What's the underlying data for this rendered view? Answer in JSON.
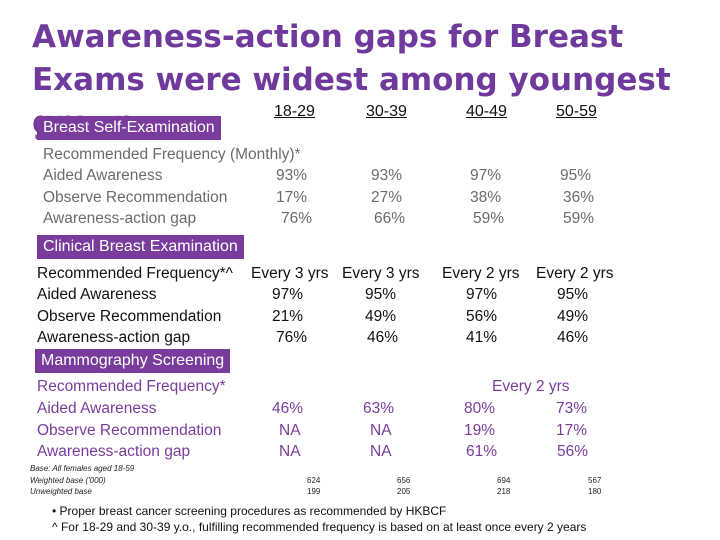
{
  "title": "Awareness-action gaps for Breast Exams were widest among youngest group.",
  "age_groups": [
    "18-29",
    "30-39",
    "40-49",
    "50-59"
  ],
  "sections": {
    "bse": {
      "label": "Breast Self-Examination",
      "rows": [
        {
          "label": "Recommended Frequency (Monthly)*",
          "values": [
            "",
            "",
            "",
            ""
          ]
        },
        {
          "label": "Aided Awareness",
          "values": [
            "93%",
            "93%",
            "97%",
            "95%"
          ]
        },
        {
          "label": "Observe Recommendation",
          "values": [
            "17%",
            "27%",
            "38%",
            "36%"
          ]
        },
        {
          "label": "Awareness-action gap",
          "values": [
            "76%",
            "66%",
            "59%",
            "59%"
          ]
        }
      ]
    },
    "cbe": {
      "label": "Clinical Breast Examination",
      "rows": [
        {
          "label": "Recommended Frequency*^",
          "values": [
            "Every 3 yrs",
            "Every 3 yrs",
            "Every 2 yrs",
            "Every 2 yrs"
          ]
        },
        {
          "label": "Aided Awareness",
          "values": [
            "97%",
            "95%",
            "97%",
            "95%"
          ]
        },
        {
          "label": "Observe Recommendation",
          "values": [
            "21%",
            "49%",
            "56%",
            "49%"
          ]
        },
        {
          "label": "Awareness-action gap",
          "values": [
            "76%",
            "46%",
            "41%",
            "46%"
          ]
        }
      ]
    },
    "mammo": {
      "label": "Mammography Screening",
      "rows": [
        {
          "label": "Recommended Frequency*",
          "values": [
            "",
            "",
            "Every 2 yrs",
            ""
          ]
        },
        {
          "label": "Aided Awareness",
          "values": [
            "46%",
            "63%",
            "80%",
            "73%"
          ]
        },
        {
          "label": "Observe Recommendation",
          "values": [
            "NA",
            "NA",
            "19%",
            "17%"
          ]
        },
        {
          "label": "Awareness-action gap",
          "values": [
            "NA",
            "NA",
            "61%",
            "56%"
          ]
        }
      ]
    }
  },
  "base": {
    "label": "Base: All females aged 18-59",
    "weighted_label": "Weighted base ('000)",
    "unweighted_label": "Unweighted base",
    "weighted": [
      "624",
      "656",
      "694",
      "567"
    ],
    "unweighted": [
      "199",
      "205",
      "218",
      "180"
    ]
  },
  "footnotes": [
    "• Proper breast cancer screening procedures as recommended by HKBCF",
    "^ For 18-29 and 30-39 y.o., fulfilling recommended frequency is based on at least once every 2 years"
  ],
  "colors": {
    "accent": "#7a3c9c",
    "title": "#6f3a9b",
    "grey_text": "#6b6b6b",
    "purple_text": "#7a3c9c"
  }
}
